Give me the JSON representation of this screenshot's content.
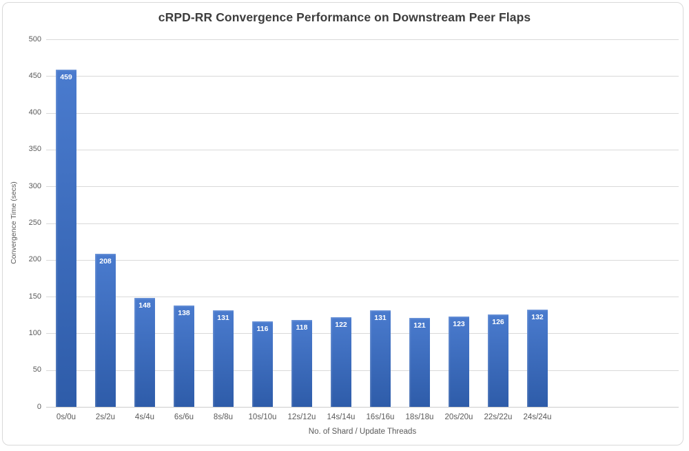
{
  "chart_data": {
    "type": "bar",
    "title": "cRPD-RR Convergence Performance on Downstream Peer Flaps",
    "xlabel": "No. of Shard / Update Threads",
    "ylabel": "Convergence Time (secs)",
    "categories": [
      "0s/0u",
      "2s/2u",
      "4s/4u",
      "6s/6u",
      "8s/8u",
      "10s/10u",
      "12s/12u",
      "14s/14u",
      "16s/16u",
      "18s/18u",
      "20s/20u",
      "22s/22u",
      "24s/24u"
    ],
    "values": [
      459,
      208,
      148,
      138,
      131,
      116,
      118,
      122,
      131,
      121,
      123,
      126,
      132
    ],
    "ylim": [
      0,
      500
    ],
    "ytick_step": 50,
    "grid": true,
    "legend": false,
    "data_labels_visible": true,
    "colors": {
      "bar_gradient_top": "#4a7bce",
      "bar_gradient_bottom": "#2e5ca9",
      "data_label_text": "#ffffff",
      "gridline": "#d9d9d9",
      "axis_line": "#cccccc",
      "axis_text": "#595959",
      "title_text": "#3d3d3d",
      "frame_border": "#d9d9d9",
      "background": "#ffffff"
    }
  }
}
